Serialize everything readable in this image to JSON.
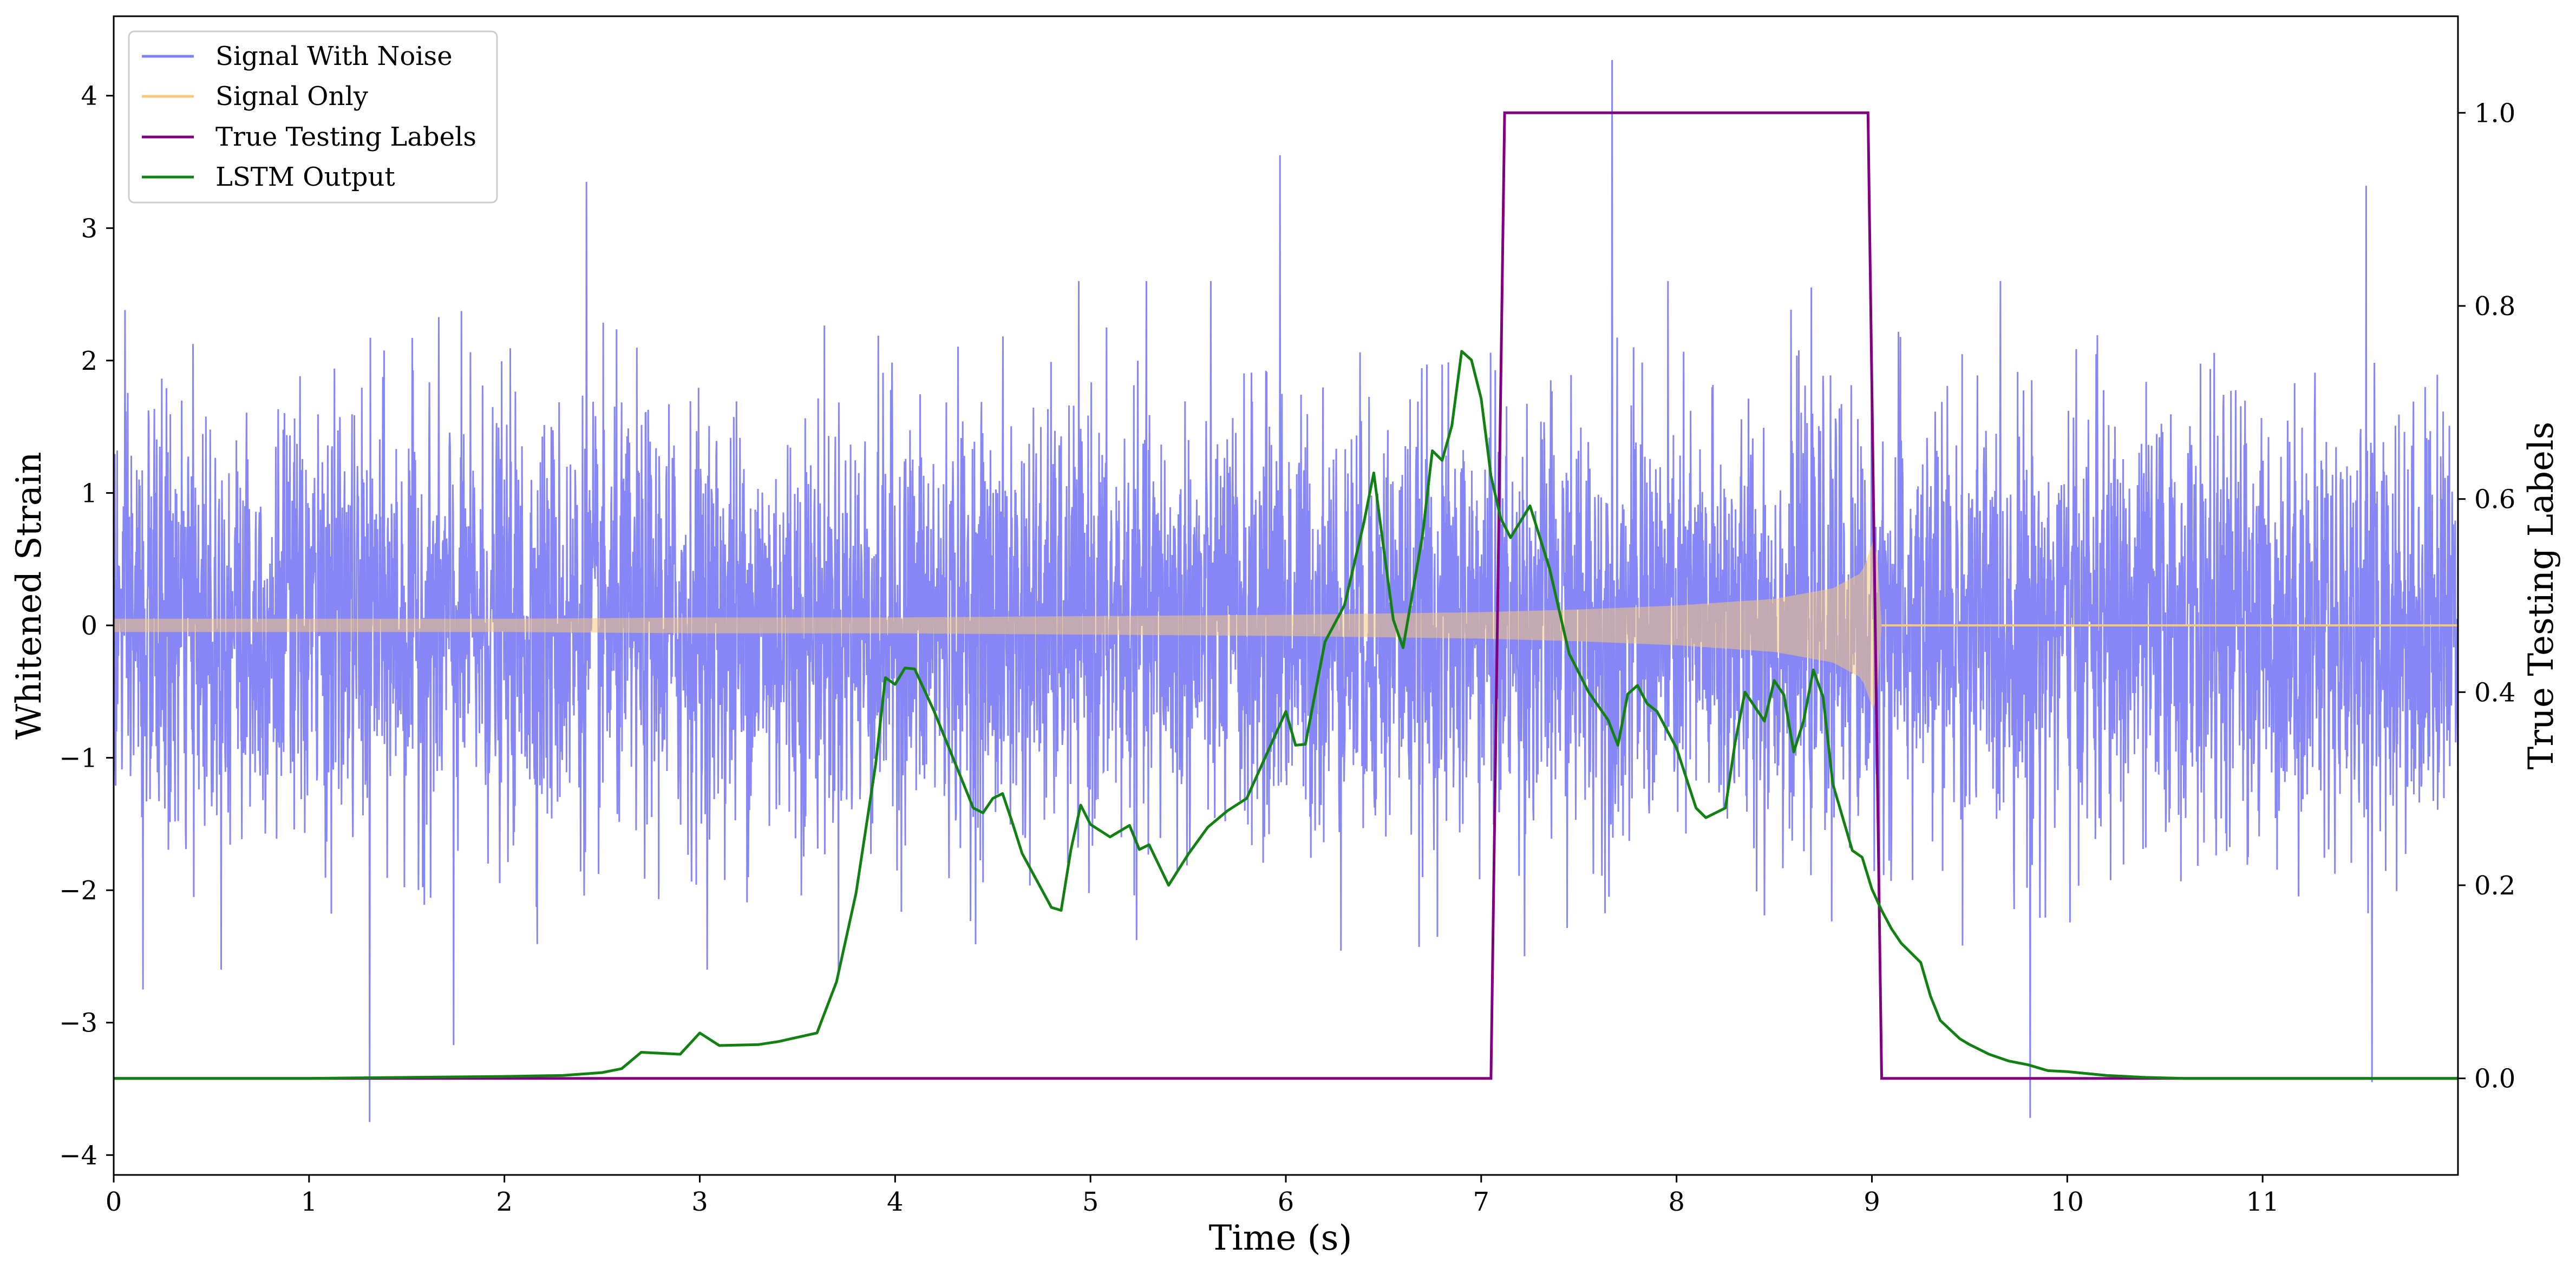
{
  "chart_data": {
    "type": "line",
    "xlabel": "Time (s)",
    "ylabel_left": "Whitened Strain",
    "ylabel_right": "True Testing Labels",
    "xlim": [
      0,
      12
    ],
    "ylim_left": [
      -4.15,
      4.6
    ],
    "ylim_right": [
      -0.1,
      1.1
    ],
    "x_ticks": [
      0,
      1,
      2,
      3,
      4,
      5,
      6,
      7,
      8,
      9,
      10,
      11
    ],
    "x_tick_labels": [
      "0",
      "1",
      "2",
      "3",
      "4",
      "5",
      "6",
      "7",
      "8",
      "9",
      "10",
      "11"
    ],
    "y_left_ticks": [
      4,
      3,
      2,
      1,
      0,
      -1,
      -2,
      -3,
      -4
    ],
    "y_left_tick_labels": [
      "4",
      "3",
      "2",
      "1",
      "0",
      "−1",
      "−2",
      "−3",
      "−4"
    ],
    "y_right_ticks": [
      1.0,
      0.8,
      0.6,
      0.4,
      0.2,
      0.0
    ],
    "y_right_tick_labels": [
      "1.0",
      "0.8",
      "0.6",
      "0.4",
      "0.2",
      "0.0"
    ],
    "grid": false,
    "legend_position": "top-left",
    "legend": [
      {
        "name": "Signal With Noise",
        "color": "#7f7ff5"
      },
      {
        "name": "Signal Only",
        "color": "#f5c87a"
      },
      {
        "name": "True Testing Labels",
        "color": "#800080"
      },
      {
        "name": "LSTM Output",
        "color": "#138013"
      }
    ],
    "series": [
      {
        "name": "Signal With Noise",
        "axis": "left",
        "color": "#7f7ff5",
        "description": "whitened noise, approx std 0.8, spanning about -3.75 to 4.27",
        "peaks": [
          {
            "x": 7.67,
            "y": 4.27
          },
          {
            "x": 5.97,
            "y": 3.55
          },
          {
            "x": 2.42,
            "y": 3.35
          },
          {
            "x": 11.53,
            "y": 3.32
          },
          {
            "x": 1.31,
            "y": -3.75
          },
          {
            "x": 9.81,
            "y": -3.72
          },
          {
            "x": 11.56,
            "y": -3.45
          },
          {
            "x": 1.74,
            "y": -3.17
          },
          {
            "x": 0.15,
            "y": -2.75
          }
        ]
      },
      {
        "name": "Signal Only",
        "axis": "left",
        "color": "#f5c87a",
        "description": "chirp signal with growing amplitude, ending near x = 9.05",
        "x": [
          0.0,
          1.0,
          2.0,
          3.0,
          4.0,
          5.0,
          6.0,
          6.5,
          7.0,
          7.5,
          8.0,
          8.5,
          8.8,
          8.95,
          9.02,
          9.05
        ],
        "envelope": [
          0.05,
          0.05,
          0.05,
          0.06,
          0.06,
          0.07,
          0.08,
          0.09,
          0.1,
          0.12,
          0.15,
          0.2,
          0.28,
          0.4,
          0.7,
          0.0
        ]
      },
      {
        "name": "True Testing Labels",
        "axis": "right",
        "color": "#800080",
        "x": [
          0.0,
          7.05,
          7.12,
          8.98,
          9.05,
          12.0
        ],
        "y": [
          0.0,
          0.0,
          1.0,
          1.0,
          0.0,
          0.0
        ]
      },
      {
        "name": "LSTM Output",
        "axis": "right",
        "color": "#138013",
        "x": [
          0.0,
          1.0,
          1.5,
          2.0,
          2.3,
          2.5,
          2.6,
          2.7,
          2.9,
          3.0,
          3.1,
          3.3,
          3.4,
          3.6,
          3.7,
          3.8,
          3.9,
          3.95,
          4.0,
          4.05,
          4.1,
          4.2,
          4.4,
          4.45,
          4.5,
          4.55,
          4.6,
          4.65,
          4.8,
          4.85,
          4.9,
          4.95,
          5.0,
          5.1,
          5.2,
          5.25,
          5.3,
          5.4,
          5.5,
          5.6,
          5.7,
          5.8,
          5.9,
          6.0,
          6.05,
          6.1,
          6.2,
          6.3,
          6.4,
          6.45,
          6.5,
          6.55,
          6.6,
          6.7,
          6.75,
          6.8,
          6.85,
          6.9,
          6.95,
          7.0,
          7.05,
          7.1,
          7.15,
          7.25,
          7.35,
          7.45,
          7.55,
          7.65,
          7.7,
          7.75,
          7.8,
          7.85,
          7.9,
          8.0,
          8.1,
          8.15,
          8.25,
          8.3,
          8.35,
          8.45,
          8.5,
          8.55,
          8.6,
          8.65,
          8.7,
          8.75,
          8.8,
          8.9,
          8.95,
          9.0,
          9.05,
          9.1,
          9.15,
          9.25,
          9.3,
          9.35,
          9.45,
          9.5,
          9.6,
          9.7,
          9.8,
          9.9,
          10.0,
          10.2,
          10.4,
          10.6,
          11.0,
          12.0
        ],
        "y": [
          0.0,
          0.0,
          0.001,
          0.002,
          0.003,
          0.006,
          0.01,
          0.027,
          0.025,
          0.047,
          0.034,
          0.035,
          0.038,
          0.047,
          0.1,
          0.192,
          0.325,
          0.415,
          0.408,
          0.425,
          0.424,
          0.38,
          0.28,
          0.275,
          0.29,
          0.295,
          0.265,
          0.233,
          0.177,
          0.174,
          0.237,
          0.283,
          0.263,
          0.25,
          0.262,
          0.237,
          0.242,
          0.2,
          0.232,
          0.26,
          0.277,
          0.29,
          0.335,
          0.38,
          0.345,
          0.346,
          0.452,
          0.49,
          0.576,
          0.627,
          0.55,
          0.475,
          0.446,
          0.563,
          0.65,
          0.64,
          0.676,
          0.753,
          0.744,
          0.704,
          0.624,
          0.58,
          0.56,
          0.593,
          0.528,
          0.44,
          0.4,
          0.371,
          0.345,
          0.398,
          0.407,
          0.388,
          0.38,
          0.342,
          0.28,
          0.27,
          0.28,
          0.348,
          0.4,
          0.37,
          0.412,
          0.397,
          0.338,
          0.37,
          0.423,
          0.395,
          0.305,
          0.236,
          0.229,
          0.196,
          0.174,
          0.155,
          0.14,
          0.12,
          0.085,
          0.06,
          0.041,
          0.035,
          0.025,
          0.018,
          0.014,
          0.008,
          0.007,
          0.003,
          0.001,
          0.0,
          0.0,
          0.0
        ]
      }
    ]
  }
}
